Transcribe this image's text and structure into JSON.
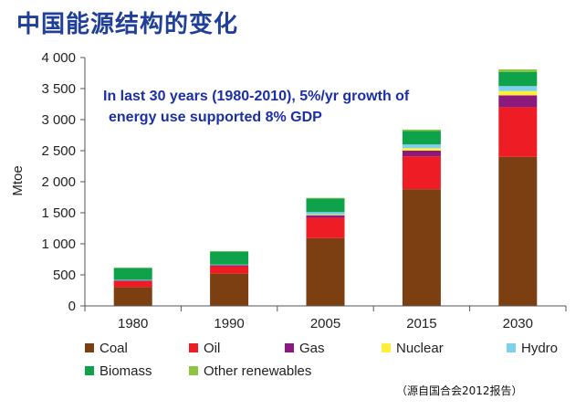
{
  "page": {
    "title": "中国能源结构的变化",
    "source_note": "（源自国合会2012报告）"
  },
  "chart_data": {
    "type": "bar",
    "stacked": true,
    "categories": [
      "1980",
      "1990",
      "2005",
      "2015",
      "2030"
    ],
    "ylabel": "Mtoe",
    "ylim": [
      0,
      4000
    ],
    "yticks": [
      0,
      500,
      1000,
      1500,
      2000,
      2500,
      3000,
      3500,
      4000
    ],
    "ytick_labels": [
      "0",
      "500",
      "1 000",
      "1 500",
      "2 000",
      "2 500",
      "3 000",
      "3 500",
      "4 000"
    ],
    "grid": false,
    "annotation": [
      "In last 30 years (1980-2010), 5%/yr growth of",
      "energy use supported 8% GDP"
    ],
    "legend_position": "bottom",
    "series": [
      {
        "name": "Coal",
        "color": "#7b3f12",
        "values": [
          300,
          520,
          1090,
          1880,
          2400
        ]
      },
      {
        "name": "Oil",
        "color": "#ee1c25",
        "values": [
          100,
          120,
          330,
          530,
          800
        ]
      },
      {
        "name": "Gas",
        "color": "#8b1a7c",
        "values": [
          10,
          15,
          40,
          90,
          190
        ]
      },
      {
        "name": "Nuclear",
        "color": "#ffef3a",
        "values": [
          0,
          0,
          10,
          40,
          70
        ]
      },
      {
        "name": "Hydro",
        "color": "#7fd0ec",
        "values": [
          10,
          10,
          40,
          60,
          80
        ]
      },
      {
        "name": "Biomass",
        "color": "#0ea34b",
        "values": [
          190,
          210,
          220,
          220,
          230
        ]
      },
      {
        "name": "Other renewables",
        "color": "#8cc63f",
        "values": [
          5,
          5,
          10,
          20,
          40
        ]
      }
    ]
  }
}
